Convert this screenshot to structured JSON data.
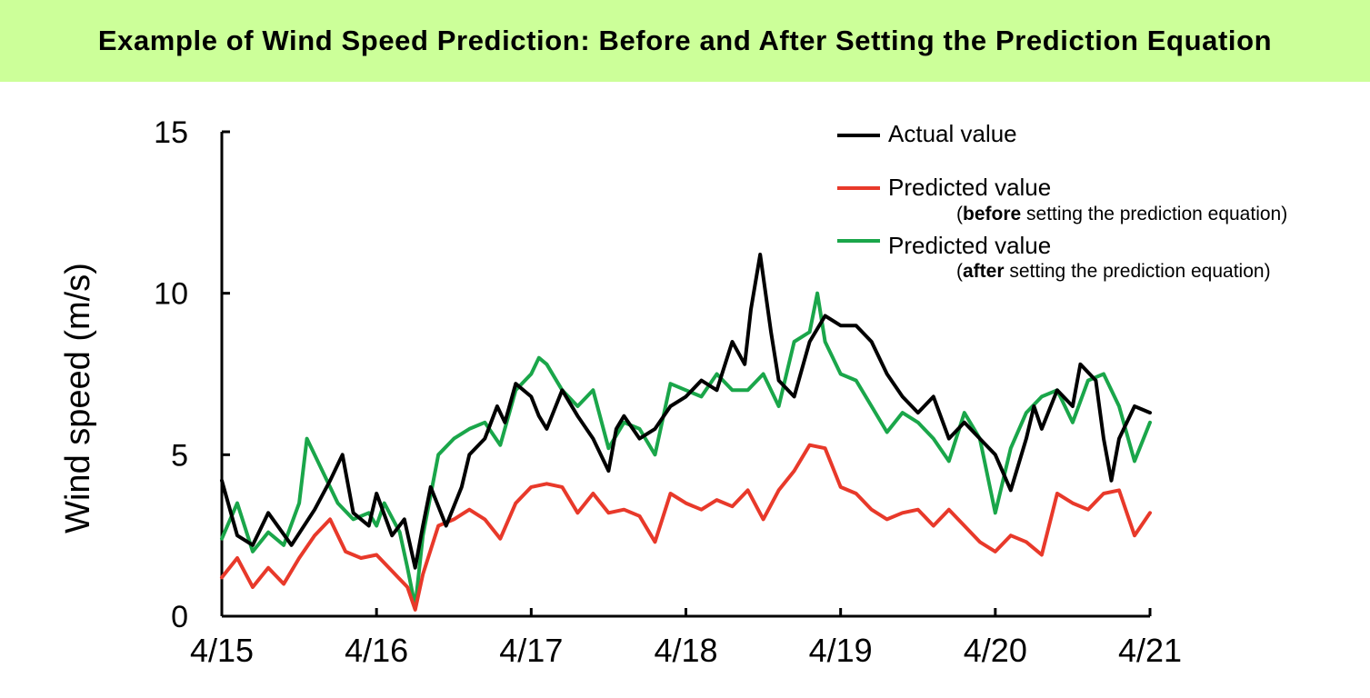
{
  "title": "Example of Wind Speed Prediction: Before and After Setting the Prediction Equation",
  "colors": {
    "title_bg": "#ccff99",
    "actual": "#000000",
    "before": "#e8392a",
    "after": "#1aa64a"
  },
  "chart_data": {
    "type": "line",
    "title": "Example of Wind Speed Prediction: Before and After Setting the Prediction Equation",
    "xlabel": "",
    "ylabel": "Wind speed (m/s)",
    "x_ticks": [
      "4/15",
      "4/16",
      "4/17",
      "4/18",
      "4/19",
      "4/20",
      "4/21"
    ],
    "x_range_days": [
      0,
      6
    ],
    "ylim": [
      0,
      15
    ],
    "y_ticks": [
      0,
      5,
      10,
      15
    ],
    "grid": false,
    "legend_position": "top-right",
    "series": [
      {
        "name": "Actual value",
        "color": "#000000",
        "points": [
          [
            0,
            4.2
          ],
          [
            0.1,
            2.5
          ],
          [
            0.2,
            2.2
          ],
          [
            0.3,
            3.2
          ],
          [
            0.45,
            2.2
          ],
          [
            0.6,
            3.3
          ],
          [
            0.7,
            4.2
          ],
          [
            0.78,
            5.0
          ],
          [
            0.85,
            3.2
          ],
          [
            0.95,
            2.8
          ],
          [
            1.0,
            3.8
          ],
          [
            1.1,
            2.5
          ],
          [
            1.18,
            3.0
          ],
          [
            1.25,
            1.5
          ],
          [
            1.3,
            2.8
          ],
          [
            1.35,
            4.0
          ],
          [
            1.45,
            2.8
          ],
          [
            1.55,
            4.0
          ],
          [
            1.6,
            5.0
          ],
          [
            1.7,
            5.5
          ],
          [
            1.78,
            6.5
          ],
          [
            1.83,
            6.0
          ],
          [
            1.9,
            7.2
          ],
          [
            2.0,
            6.8
          ],
          [
            2.05,
            6.2
          ],
          [
            2.1,
            5.8
          ],
          [
            2.2,
            7.0
          ],
          [
            2.3,
            6.2
          ],
          [
            2.4,
            5.5
          ],
          [
            2.5,
            4.5
          ],
          [
            2.55,
            5.8
          ],
          [
            2.6,
            6.2
          ],
          [
            2.7,
            5.5
          ],
          [
            2.8,
            5.8
          ],
          [
            2.9,
            6.5
          ],
          [
            3.0,
            6.8
          ],
          [
            3.1,
            7.3
          ],
          [
            3.2,
            7.0
          ],
          [
            3.3,
            8.5
          ],
          [
            3.38,
            7.8
          ],
          [
            3.42,
            9.5
          ],
          [
            3.48,
            11.2
          ],
          [
            3.55,
            8.8
          ],
          [
            3.6,
            7.3
          ],
          [
            3.7,
            6.8
          ],
          [
            3.8,
            8.5
          ],
          [
            3.9,
            9.3
          ],
          [
            4.0,
            9.0
          ],
          [
            4.1,
            9.0
          ],
          [
            4.2,
            8.5
          ],
          [
            4.3,
            7.5
          ],
          [
            4.4,
            6.8
          ],
          [
            4.5,
            6.3
          ],
          [
            4.6,
            6.8
          ],
          [
            4.7,
            5.5
          ],
          [
            4.8,
            6.0
          ],
          [
            4.9,
            5.5
          ],
          [
            5.0,
            5.0
          ],
          [
            5.1,
            3.9
          ],
          [
            5.2,
            5.5
          ],
          [
            5.25,
            6.5
          ],
          [
            5.3,
            5.8
          ],
          [
            5.4,
            7.0
          ],
          [
            5.5,
            6.5
          ],
          [
            5.55,
            7.8
          ],
          [
            5.65,
            7.3
          ],
          [
            5.7,
            5.5
          ],
          [
            5.75,
            4.2
          ],
          [
            5.8,
            5.5
          ],
          [
            5.9,
            6.5
          ],
          [
            6.0,
            6.3
          ]
        ]
      },
      {
        "name": "Predicted value (before setting the prediction equation)",
        "color": "#e8392a",
        "points": [
          [
            0,
            1.2
          ],
          [
            0.1,
            1.8
          ],
          [
            0.2,
            0.9
          ],
          [
            0.3,
            1.5
          ],
          [
            0.4,
            1.0
          ],
          [
            0.5,
            1.8
          ],
          [
            0.6,
            2.5
          ],
          [
            0.7,
            3.0
          ],
          [
            0.8,
            2.0
          ],
          [
            0.9,
            1.8
          ],
          [
            1.0,
            1.9
          ],
          [
            1.1,
            1.4
          ],
          [
            1.2,
            0.9
          ],
          [
            1.25,
            0.2
          ],
          [
            1.3,
            1.3
          ],
          [
            1.4,
            2.8
          ],
          [
            1.5,
            3.0
          ],
          [
            1.6,
            3.3
          ],
          [
            1.7,
            3.0
          ],
          [
            1.8,
            2.4
          ],
          [
            1.9,
            3.5
          ],
          [
            2.0,
            4.0
          ],
          [
            2.1,
            4.1
          ],
          [
            2.2,
            4.0
          ],
          [
            2.3,
            3.2
          ],
          [
            2.4,
            3.8
          ],
          [
            2.5,
            3.2
          ],
          [
            2.6,
            3.3
          ],
          [
            2.7,
            3.1
          ],
          [
            2.8,
            2.3
          ],
          [
            2.9,
            3.8
          ],
          [
            3.0,
            3.5
          ],
          [
            3.1,
            3.3
          ],
          [
            3.2,
            3.6
          ],
          [
            3.3,
            3.4
          ],
          [
            3.4,
            3.9
          ],
          [
            3.5,
            3.0
          ],
          [
            3.6,
            3.9
          ],
          [
            3.7,
            4.5
          ],
          [
            3.8,
            5.3
          ],
          [
            3.9,
            5.2
          ],
          [
            4.0,
            4.0
          ],
          [
            4.1,
            3.8
          ],
          [
            4.2,
            3.3
          ],
          [
            4.3,
            3.0
          ],
          [
            4.4,
            3.2
          ],
          [
            4.5,
            3.3
          ],
          [
            4.6,
            2.8
          ],
          [
            4.7,
            3.3
          ],
          [
            4.8,
            2.8
          ],
          [
            4.9,
            2.3
          ],
          [
            5.0,
            2.0
          ],
          [
            5.1,
            2.5
          ],
          [
            5.2,
            2.3
          ],
          [
            5.3,
            1.9
          ],
          [
            5.4,
            3.8
          ],
          [
            5.5,
            3.5
          ],
          [
            5.6,
            3.3
          ],
          [
            5.7,
            3.8
          ],
          [
            5.8,
            3.9
          ],
          [
            5.9,
            2.5
          ],
          [
            6.0,
            3.2
          ]
        ]
      },
      {
        "name": "Predicted value (after setting the prediction equation)",
        "color": "#1aa64a",
        "points": [
          [
            0,
            2.4
          ],
          [
            0.1,
            3.5
          ],
          [
            0.2,
            2.0
          ],
          [
            0.3,
            2.6
          ],
          [
            0.4,
            2.2
          ],
          [
            0.5,
            3.5
          ],
          [
            0.55,
            5.5
          ],
          [
            0.65,
            4.5
          ],
          [
            0.75,
            3.5
          ],
          [
            0.85,
            3.0
          ],
          [
            0.95,
            3.2
          ],
          [
            1.0,
            2.8
          ],
          [
            1.05,
            3.5
          ],
          [
            1.15,
            2.6
          ],
          [
            1.2,
            1.5
          ],
          [
            1.25,
            0.3
          ],
          [
            1.3,
            2.5
          ],
          [
            1.4,
            5.0
          ],
          [
            1.5,
            5.5
          ],
          [
            1.6,
            5.8
          ],
          [
            1.7,
            6.0
          ],
          [
            1.8,
            5.3
          ],
          [
            1.9,
            7.0
          ],
          [
            2.0,
            7.5
          ],
          [
            2.05,
            8.0
          ],
          [
            2.1,
            7.8
          ],
          [
            2.2,
            7.0
          ],
          [
            2.3,
            6.5
          ],
          [
            2.4,
            7.0
          ],
          [
            2.5,
            5.2
          ],
          [
            2.6,
            6.0
          ],
          [
            2.7,
            5.8
          ],
          [
            2.8,
            5.0
          ],
          [
            2.9,
            7.2
          ],
          [
            3.0,
            7.0
          ],
          [
            3.1,
            6.8
          ],
          [
            3.2,
            7.5
          ],
          [
            3.3,
            7.0
          ],
          [
            3.4,
            7.0
          ],
          [
            3.5,
            7.5
          ],
          [
            3.6,
            6.5
          ],
          [
            3.7,
            8.5
          ],
          [
            3.8,
            8.8
          ],
          [
            3.85,
            10.0
          ],
          [
            3.9,
            8.5
          ],
          [
            4.0,
            7.5
          ],
          [
            4.1,
            7.3
          ],
          [
            4.2,
            6.5
          ],
          [
            4.3,
            5.7
          ],
          [
            4.4,
            6.3
          ],
          [
            4.5,
            6.0
          ],
          [
            4.6,
            5.5
          ],
          [
            4.7,
            4.8
          ],
          [
            4.8,
            6.3
          ],
          [
            4.9,
            5.5
          ],
          [
            5.0,
            3.2
          ],
          [
            5.1,
            5.2
          ],
          [
            5.2,
            6.3
          ],
          [
            5.3,
            6.8
          ],
          [
            5.4,
            7.0
          ],
          [
            5.5,
            6.0
          ],
          [
            5.6,
            7.3
          ],
          [
            5.7,
            7.5
          ],
          [
            5.8,
            6.5
          ],
          [
            5.9,
            4.8
          ],
          [
            6.0,
            6.0
          ]
        ]
      }
    ]
  },
  "legend": [
    {
      "label": "Actual value",
      "sub_prefix": "",
      "sub_bold": "",
      "sub_suffix": ""
    },
    {
      "label": "Predicted value",
      "sub_prefix": "(",
      "sub_bold": "before",
      "sub_suffix": " setting the prediction equation)"
    },
    {
      "label": "Predicted value",
      "sub_prefix": "(",
      "sub_bold": "after",
      "sub_suffix": " setting the prediction equation)"
    }
  ]
}
